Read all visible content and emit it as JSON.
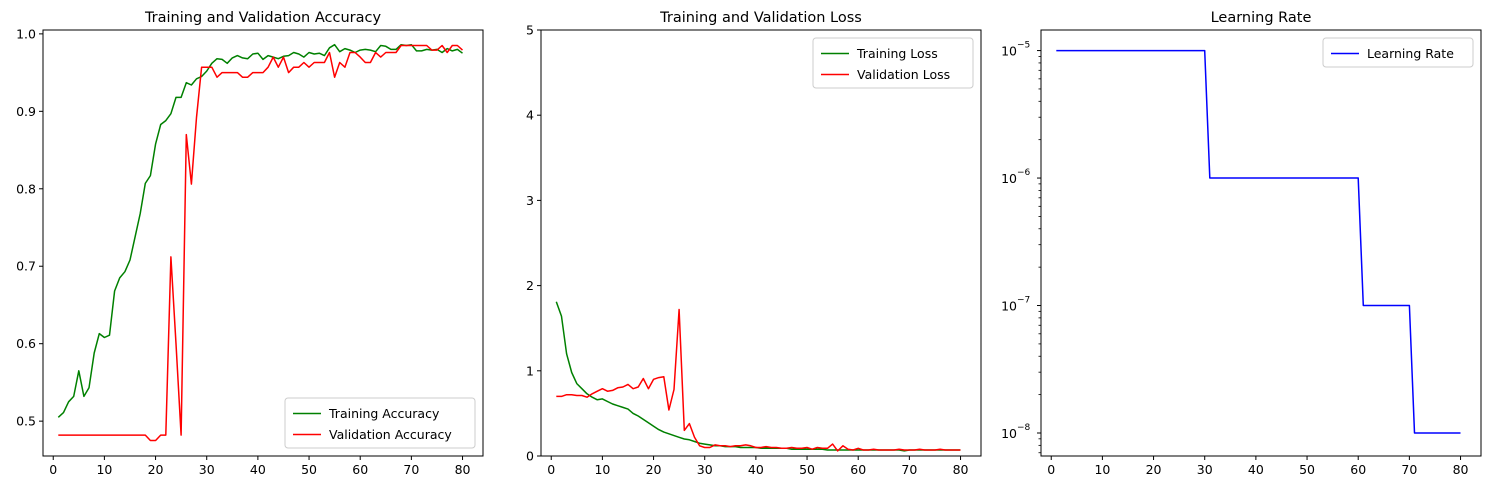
{
  "chart_data": [
    {
      "type": "line",
      "title": "Training and Validation Accuracy",
      "xlabel": "",
      "ylabel": "",
      "xlim": [
        -2,
        84
      ],
      "ylim": [
        0.455,
        1.005
      ],
      "xticks": [
        0,
        10,
        20,
        30,
        40,
        50,
        60,
        70,
        80
      ],
      "yticks": [
        0.5,
        0.6,
        0.7,
        0.8,
        0.9,
        1.0
      ],
      "ytick_labels": [
        "0.5",
        "0.6",
        "0.7",
        "0.8",
        "0.9",
        "1.0"
      ],
      "legend": "lower right",
      "grid": false,
      "x": [
        1,
        2,
        3,
        4,
        5,
        6,
        7,
        8,
        9,
        10,
        11,
        12,
        13,
        14,
        15,
        16,
        17,
        18,
        19,
        20,
        21,
        22,
        23,
        24,
        25,
        26,
        27,
        28,
        29,
        30,
        31,
        32,
        33,
        34,
        35,
        36,
        37,
        38,
        39,
        40,
        41,
        42,
        43,
        44,
        45,
        46,
        47,
        48,
        49,
        50,
        51,
        52,
        53,
        54,
        55,
        56,
        57,
        58,
        59,
        60,
        61,
        62,
        63,
        64,
        65,
        66,
        67,
        68,
        69,
        70,
        71,
        72,
        73,
        74,
        75,
        76,
        77,
        78,
        79,
        80
      ],
      "series": [
        {
          "name": "Training Accuracy",
          "color": "#008000",
          "values": [
            0.505,
            0.511,
            0.525,
            0.532,
            0.565,
            0.532,
            0.543,
            0.588,
            0.613,
            0.608,
            0.611,
            0.668,
            0.685,
            0.693,
            0.708,
            0.738,
            0.768,
            0.807,
            0.817,
            0.858,
            0.883,
            0.888,
            0.897,
            0.918,
            0.918,
            0.937,
            0.934,
            0.942,
            0.945,
            0.952,
            0.962,
            0.968,
            0.967,
            0.962,
            0.969,
            0.972,
            0.969,
            0.968,
            0.974,
            0.975,
            0.967,
            0.972,
            0.97,
            0.968,
            0.971,
            0.972,
            0.976,
            0.974,
            0.97,
            0.976,
            0.974,
            0.975,
            0.972,
            0.982,
            0.986,
            0.977,
            0.981,
            0.979,
            0.976,
            0.979,
            0.98,
            0.979,
            0.977,
            0.985,
            0.984,
            0.98,
            0.98,
            0.986,
            0.985,
            0.986,
            0.978,
            0.978,
            0.98,
            0.979,
            0.98,
            0.976,
            0.981,
            0.978,
            0.98,
            0.975
          ]
        },
        {
          "name": "Validation Accuracy",
          "color": "#ff0000",
          "values": [
            0.482,
            0.482,
            0.482,
            0.482,
            0.482,
            0.482,
            0.482,
            0.482,
            0.482,
            0.482,
            0.482,
            0.482,
            0.482,
            0.482,
            0.482,
            0.482,
            0.482,
            0.482,
            0.475,
            0.475,
            0.482,
            0.482,
            0.712,
            0.6,
            0.482,
            0.87,
            0.806,
            0.892,
            0.957,
            0.957,
            0.957,
            0.944,
            0.95,
            0.95,
            0.95,
            0.95,
            0.944,
            0.944,
            0.95,
            0.95,
            0.95,
            0.957,
            0.97,
            0.957,
            0.97,
            0.95,
            0.957,
            0.957,
            0.963,
            0.957,
            0.963,
            0.963,
            0.963,
            0.976,
            0.944,
            0.963,
            0.957,
            0.976,
            0.976,
            0.97,
            0.963,
            0.963,
            0.976,
            0.97,
            0.976,
            0.976,
            0.976,
            0.985,
            0.985,
            0.985,
            0.985,
            0.985,
            0.985,
            0.979,
            0.979,
            0.985,
            0.976,
            0.985,
            0.985,
            0.979
          ]
        }
      ]
    },
    {
      "type": "line",
      "title": "Training and Validation Loss",
      "xlabel": "",
      "ylabel": "",
      "xlim": [
        -2,
        84
      ],
      "ylim": [
        0,
        5
      ],
      "xticks": [
        0,
        10,
        20,
        30,
        40,
        50,
        60,
        70,
        80
      ],
      "yticks": [
        0,
        1,
        2,
        3,
        4,
        5
      ],
      "ytick_labels": [
        "0",
        "1",
        "2",
        "3",
        "4",
        "5"
      ],
      "legend": "upper right",
      "grid": false,
      "x": [
        1,
        2,
        3,
        4,
        5,
        6,
        7,
        8,
        9,
        10,
        11,
        12,
        13,
        14,
        15,
        16,
        17,
        18,
        19,
        20,
        21,
        22,
        23,
        24,
        25,
        26,
        27,
        28,
        29,
        30,
        31,
        32,
        33,
        34,
        35,
        36,
        37,
        38,
        39,
        40,
        41,
        42,
        43,
        44,
        45,
        46,
        47,
        48,
        49,
        50,
        51,
        52,
        53,
        54,
        55,
        56,
        57,
        58,
        59,
        60,
        61,
        62,
        63,
        64,
        65,
        66,
        67,
        68,
        69,
        70,
        71,
        72,
        73,
        74,
        75,
        76,
        77,
        78,
        79,
        80
      ],
      "series": [
        {
          "name": "Training Loss",
          "color": "#008000",
          "values": [
            1.81,
            1.64,
            1.2,
            0.98,
            0.85,
            0.79,
            0.73,
            0.69,
            0.66,
            0.67,
            0.64,
            0.61,
            0.59,
            0.57,
            0.55,
            0.5,
            0.47,
            0.43,
            0.39,
            0.35,
            0.31,
            0.28,
            0.26,
            0.24,
            0.22,
            0.2,
            0.19,
            0.17,
            0.15,
            0.14,
            0.13,
            0.12,
            0.12,
            0.11,
            0.11,
            0.11,
            0.1,
            0.1,
            0.1,
            0.1,
            0.09,
            0.09,
            0.09,
            0.09,
            0.09,
            0.09,
            0.08,
            0.08,
            0.08,
            0.08,
            0.08,
            0.08,
            0.08,
            0.07,
            0.07,
            0.07,
            0.07,
            0.07,
            0.07,
            0.07,
            0.07,
            0.07,
            0.07,
            0.07,
            0.07,
            0.07,
            0.07,
            0.07,
            0.06,
            0.07,
            0.07,
            0.07,
            0.07,
            0.07,
            0.07,
            0.07,
            0.07,
            0.07,
            0.07,
            0.07
          ]
        },
        {
          "name": "Validation Loss",
          "color": "#ff0000",
          "values": [
            0.7,
            0.7,
            0.72,
            0.72,
            0.71,
            0.71,
            0.69,
            0.73,
            0.76,
            0.79,
            0.76,
            0.77,
            0.8,
            0.81,
            0.84,
            0.79,
            0.81,
            0.91,
            0.79,
            0.9,
            0.92,
            0.93,
            0.54,
            0.78,
            1.72,
            0.3,
            0.38,
            0.22,
            0.12,
            0.1,
            0.1,
            0.13,
            0.12,
            0.12,
            0.11,
            0.12,
            0.12,
            0.13,
            0.12,
            0.1,
            0.1,
            0.11,
            0.1,
            0.1,
            0.09,
            0.09,
            0.1,
            0.09,
            0.09,
            0.1,
            0.08,
            0.1,
            0.09,
            0.09,
            0.14,
            0.06,
            0.12,
            0.08,
            0.07,
            0.09,
            0.07,
            0.07,
            0.08,
            0.07,
            0.07,
            0.07,
            0.07,
            0.08,
            0.07,
            0.07,
            0.07,
            0.08,
            0.07,
            0.07,
            0.07,
            0.08,
            0.07,
            0.07,
            0.07,
            0.07
          ]
        }
      ]
    },
    {
      "type": "line",
      "title": "Learning Rate",
      "xlabel": "",
      "ylabel": "",
      "yscale": "log",
      "xlim": [
        -2,
        84
      ],
      "ylim": [
        6.6e-09,
        1.45e-05
      ],
      "xticks": [
        0,
        10,
        20,
        30,
        40,
        50,
        60,
        70,
        80
      ],
      "yticks": [
        1e-05,
        1e-06,
        1e-07,
        1e-08
      ],
      "ytick_labels": [
        {
          "base": "10",
          "exp": "−5"
        },
        {
          "base": "10",
          "exp": "−6"
        },
        {
          "base": "10",
          "exp": "−7"
        },
        {
          "base": "10",
          "exp": "−8"
        }
      ],
      "legend": "upper right",
      "grid": false,
      "series": [
        {
          "name": "Learning Rate",
          "color": "#0000ff",
          "x": [
            1,
            30,
            31,
            60,
            61,
            70,
            71,
            80
          ],
          "values": [
            1e-05,
            1e-05,
            1e-06,
            1e-06,
            1e-07,
            1e-07,
            1e-08,
            1e-08
          ]
        }
      ]
    }
  ]
}
